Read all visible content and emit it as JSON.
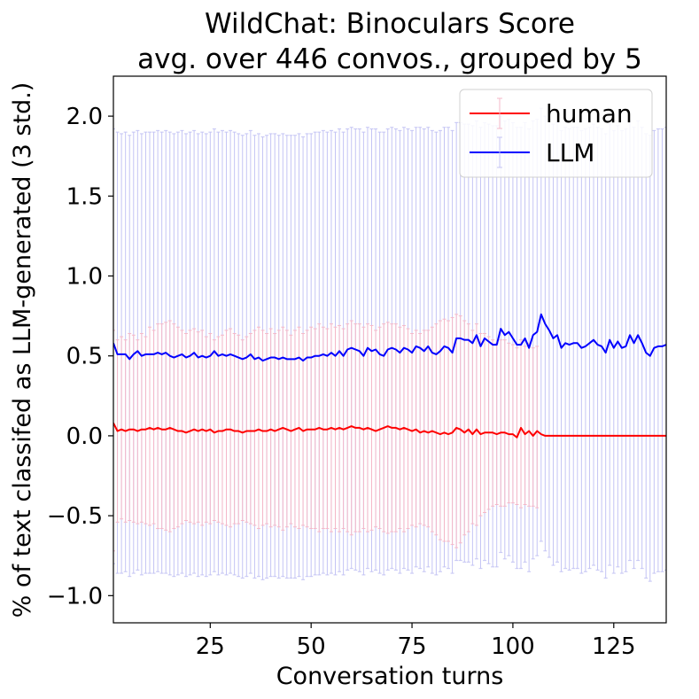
{
  "chart_data": {
    "type": "line",
    "title": [
      "WildChat: Binoculars Score",
      "avg. over 446 convos., grouped by 5"
    ],
    "xlabel": "Conversation turns",
    "ylabel": "% of text classifed as LLM-generated (3 std.)",
    "xlim": [
      1,
      138
    ],
    "ylim": [
      -1.17,
      2.25
    ],
    "xticks": [
      25,
      50,
      75,
      100,
      125
    ],
    "yticks": [
      -1.0,
      -0.5,
      0.0,
      0.5,
      1.0,
      1.5,
      2.0
    ],
    "ytick_labels": [
      "−1.0",
      "−0.5",
      "0.0",
      "0.5",
      "1.0",
      "1.5",
      "2.0"
    ],
    "grid": false,
    "legend_position": "top-right",
    "series": [
      {
        "name": "human",
        "color": "#ff0000",
        "errorbar_color": "#f5b8c8",
        "x_start": 1,
        "values": [
          0.08,
          0.03,
          0.04,
          0.03,
          0.04,
          0.04,
          0.03,
          0.04,
          0.04,
          0.05,
          0.04,
          0.05,
          0.04,
          0.04,
          0.05,
          0.04,
          0.03,
          0.03,
          0.02,
          0.03,
          0.04,
          0.03,
          0.04,
          0.03,
          0.04,
          0.02,
          0.03,
          0.03,
          0.04,
          0.04,
          0.03,
          0.03,
          0.02,
          0.03,
          0.03,
          0.03,
          0.04,
          0.03,
          0.03,
          0.04,
          0.03,
          0.04,
          0.05,
          0.04,
          0.03,
          0.04,
          0.05,
          0.03,
          0.04,
          0.04,
          0.04,
          0.05,
          0.04,
          0.04,
          0.05,
          0.04,
          0.05,
          0.04,
          0.05,
          0.06,
          0.05,
          0.05,
          0.04,
          0.05,
          0.04,
          0.03,
          0.04,
          0.05,
          0.06,
          0.05,
          0.05,
          0.04,
          0.05,
          0.04,
          0.03,
          0.04,
          0.02,
          0.03,
          0.02,
          0.03,
          0.02,
          0.01,
          0.02,
          0.01,
          0.02,
          0.05,
          0.04,
          0.02,
          0.04,
          0.01,
          0.04,
          0.01,
          0.02,
          0.02,
          0.02,
          0.01,
          0.02,
          0.02,
          0.01,
          0.01,
          -0.01,
          0.05,
          0.01,
          0.03,
          0.0,
          0.03,
          0.01,
          0.0,
          0.0,
          0.0,
          0.0,
          0.0,
          0.0,
          0.0,
          0.0,
          0.0,
          0.0,
          0.0,
          0.0,
          0.0,
          0.0,
          0.0,
          0.0,
          0.0,
          0.0,
          0.0,
          0.0,
          0.0,
          0.0,
          0.0,
          0.0,
          0.0,
          0.0,
          0.0,
          0.0,
          0.0,
          0.0,
          0.0
        ],
        "err_upper": [
          0.66,
          0.6,
          0.62,
          0.6,
          0.64,
          0.63,
          0.6,
          0.64,
          0.62,
          0.68,
          0.66,
          0.7,
          0.7,
          0.71,
          0.72,
          0.7,
          0.68,
          0.66,
          0.64,
          0.66,
          0.67,
          0.65,
          0.66,
          0.62,
          0.64,
          0.6,
          0.62,
          0.63,
          0.66,
          0.67,
          0.64,
          0.63,
          0.6,
          0.62,
          0.64,
          0.66,
          0.68,
          0.66,
          0.64,
          0.67,
          0.64,
          0.66,
          0.68,
          0.66,
          0.63,
          0.66,
          0.68,
          0.64,
          0.66,
          0.68,
          0.67,
          0.7,
          0.68,
          0.67,
          0.7,
          0.68,
          0.69,
          0.67,
          0.7,
          0.72,
          0.7,
          0.7,
          0.68,
          0.7,
          0.69,
          0.66,
          0.68,
          0.7,
          0.71,
          0.7,
          0.7,
          0.68,
          0.69,
          0.67,
          0.64,
          0.66,
          0.64,
          0.66,
          0.66,
          0.68,
          0.7,
          0.72,
          0.73,
          0.72,
          0.74,
          0.76,
          0.75,
          0.72,
          0.7,
          0.66,
          0.7,
          0.64,
          0.64,
          0.62,
          0.6,
          0.58,
          0.6,
          0.6,
          0.58,
          0.57,
          0.55,
          0.6,
          0.56,
          0.58,
          0.55,
          0.56,
          0.0,
          0.0,
          0.0,
          0.0,
          0.0,
          0.0,
          0.0,
          0.0,
          0.0,
          0.0,
          0.0,
          0.0,
          0.0,
          0.0,
          0.0,
          0.0,
          0.0,
          0.0,
          0.0,
          0.0,
          0.0,
          0.0,
          0.0,
          0.0,
          0.0,
          0.0,
          0.0,
          0.0,
          0.0,
          0.0,
          0.0,
          0.0
        ],
        "err_lower": [
          -0.72,
          -0.54,
          -0.52,
          -0.54,
          -0.53,
          -0.54,
          -0.55,
          -0.54,
          -0.55,
          -0.56,
          -0.55,
          -0.58,
          -0.58,
          -0.59,
          -0.6,
          -0.58,
          -0.57,
          -0.55,
          -0.53,
          -0.54,
          -0.55,
          -0.54,
          -0.56,
          -0.54,
          -0.55,
          -0.53,
          -0.54,
          -0.55,
          -0.56,
          -0.57,
          -0.55,
          -0.55,
          -0.53,
          -0.54,
          -0.55,
          -0.56,
          -0.58,
          -0.56,
          -0.55,
          -0.57,
          -0.56,
          -0.57,
          -0.59,
          -0.57,
          -0.55,
          -0.57,
          -0.58,
          -0.56,
          -0.57,
          -0.58,
          -0.58,
          -0.6,
          -0.58,
          -0.58,
          -0.6,
          -0.58,
          -0.6,
          -0.58,
          -0.6,
          -0.62,
          -0.6,
          -0.6,
          -0.58,
          -0.6,
          -0.59,
          -0.57,
          -0.58,
          -0.6,
          -0.61,
          -0.6,
          -0.6,
          -0.58,
          -0.6,
          -0.58,
          -0.56,
          -0.57,
          -0.55,
          -0.56,
          -0.57,
          -0.6,
          -0.62,
          -0.65,
          -0.66,
          -0.66,
          -0.68,
          -0.7,
          -0.67,
          -0.62,
          -0.6,
          -0.55,
          -0.56,
          -0.5,
          -0.48,
          -0.46,
          -0.44,
          -0.43,
          -0.44,
          -0.44,
          -0.42,
          -0.42,
          -0.43,
          -0.45,
          -0.43,
          -0.44,
          -0.44,
          -0.45,
          0.0,
          0.0,
          0.0,
          0.0,
          0.0,
          0.0,
          0.0,
          0.0,
          0.0,
          0.0,
          0.0,
          0.0,
          0.0,
          0.0,
          0.0,
          0.0,
          0.0,
          0.0,
          0.0,
          0.0,
          0.0,
          0.0,
          0.0,
          0.0,
          0.0,
          0.0,
          0.0,
          0.0,
          0.0,
          0.0,
          0.0,
          0.0
        ]
      },
      {
        "name": "LLM",
        "color": "#0000ff",
        "errorbar_color": "#c4c4f4",
        "x_start": 1,
        "values": [
          0.58,
          0.51,
          0.51,
          0.51,
          0.48,
          0.51,
          0.53,
          0.5,
          0.51,
          0.51,
          0.51,
          0.52,
          0.51,
          0.52,
          0.5,
          0.49,
          0.5,
          0.51,
          0.49,
          0.5,
          0.52,
          0.49,
          0.5,
          0.49,
          0.5,
          0.53,
          0.5,
          0.51,
          0.5,
          0.51,
          0.5,
          0.49,
          0.48,
          0.49,
          0.51,
          0.48,
          0.49,
          0.47,
          0.48,
          0.49,
          0.49,
          0.48,
          0.49,
          0.48,
          0.48,
          0.48,
          0.49,
          0.47,
          0.49,
          0.49,
          0.5,
          0.5,
          0.51,
          0.5,
          0.52,
          0.5,
          0.53,
          0.5,
          0.54,
          0.55,
          0.54,
          0.53,
          0.5,
          0.55,
          0.53,
          0.54,
          0.51,
          0.5,
          0.54,
          0.55,
          0.54,
          0.52,
          0.55,
          0.54,
          0.52,
          0.56,
          0.55,
          0.53,
          0.56,
          0.52,
          0.51,
          0.53,
          0.56,
          0.55,
          0.52,
          0.61,
          0.61,
          0.6,
          0.6,
          0.58,
          0.63,
          0.56,
          0.61,
          0.59,
          0.57,
          0.57,
          0.67,
          0.63,
          0.65,
          0.61,
          0.57,
          0.57,
          0.61,
          0.55,
          0.63,
          0.65,
          0.76,
          0.7,
          0.66,
          0.61,
          0.63,
          0.55,
          0.58,
          0.57,
          0.58,
          0.58,
          0.55,
          0.56,
          0.58,
          0.6,
          0.57,
          0.56,
          0.52,
          0.6,
          0.55,
          0.59,
          0.55,
          0.56,
          0.63,
          0.58,
          0.63,
          0.58,
          0.52,
          0.5,
          0.55,
          0.56,
          0.56,
          0.57
        ],
        "err_upper": [
          1.92,
          1.9,
          1.89,
          1.9,
          1.88,
          1.9,
          1.91,
          1.89,
          1.9,
          1.9,
          1.9,
          1.91,
          1.9,
          1.91,
          1.9,
          1.89,
          1.9,
          1.91,
          1.89,
          1.9,
          1.91,
          1.89,
          1.9,
          1.89,
          1.9,
          1.92,
          1.9,
          1.91,
          1.9,
          1.91,
          1.9,
          1.89,
          1.88,
          1.89,
          1.91,
          1.88,
          1.89,
          1.87,
          1.88,
          1.89,
          1.89,
          1.88,
          1.89,
          1.88,
          1.88,
          1.88,
          1.89,
          1.87,
          1.89,
          1.89,
          1.9,
          1.9,
          1.91,
          1.9,
          1.91,
          1.9,
          1.92,
          1.9,
          1.92,
          1.93,
          1.92,
          1.92,
          1.9,
          1.93,
          1.92,
          1.92,
          1.9,
          1.9,
          1.92,
          1.93,
          1.92,
          1.91,
          1.93,
          1.92,
          1.91,
          1.93,
          1.93,
          1.92,
          1.93,
          1.91,
          1.9,
          1.91,
          1.93,
          1.93,
          1.91,
          1.96,
          1.96,
          1.95,
          1.95,
          1.94,
          1.97,
          1.93,
          1.96,
          1.95,
          1.94,
          1.94,
          2.0,
          1.97,
          1.98,
          1.96,
          1.93,
          1.93,
          1.96,
          1.92,
          1.97,
          1.98,
          2.05,
          2.0,
          1.98,
          1.95,
          1.96,
          1.91,
          1.93,
          1.92,
          1.93,
          1.93,
          1.91,
          1.92,
          1.93,
          1.95,
          1.93,
          1.92,
          1.89,
          1.95,
          1.91,
          1.94,
          1.91,
          1.92,
          1.97,
          1.93,
          1.97,
          1.93,
          1.89,
          1.88,
          1.91,
          1.92,
          1.92,
          1.93
        ],
        "err_lower": [
          -0.8,
          -0.86,
          -0.86,
          -0.85,
          -0.88,
          -0.86,
          -0.84,
          -0.87,
          -0.86,
          -0.86,
          -0.86,
          -0.85,
          -0.86,
          -0.86,
          -0.87,
          -0.88,
          -0.87,
          -0.86,
          -0.88,
          -0.87,
          -0.86,
          -0.88,
          -0.87,
          -0.88,
          -0.87,
          -0.85,
          -0.87,
          -0.86,
          -0.87,
          -0.86,
          -0.87,
          -0.88,
          -0.89,
          -0.88,
          -0.86,
          -0.89,
          -0.88,
          -0.9,
          -0.89,
          -0.88,
          -0.88,
          -0.89,
          -0.88,
          -0.89,
          -0.89,
          -0.89,
          -0.88,
          -0.9,
          -0.88,
          -0.88,
          -0.87,
          -0.87,
          -0.86,
          -0.87,
          -0.86,
          -0.87,
          -0.85,
          -0.87,
          -0.84,
          -0.83,
          -0.84,
          -0.85,
          -0.87,
          -0.83,
          -0.85,
          -0.84,
          -0.86,
          -0.87,
          -0.84,
          -0.83,
          -0.84,
          -0.86,
          -0.83,
          -0.84,
          -0.86,
          -0.82,
          -0.83,
          -0.85,
          -0.82,
          -0.86,
          -0.87,
          -0.85,
          -0.82,
          -0.83,
          -0.86,
          -0.78,
          -0.78,
          -0.79,
          -0.79,
          -0.81,
          -0.77,
          -0.83,
          -0.78,
          -0.8,
          -0.82,
          -0.82,
          -0.73,
          -0.77,
          -0.75,
          -0.79,
          -0.83,
          -0.83,
          -0.79,
          -0.85,
          -0.77,
          -0.75,
          -0.66,
          -0.72,
          -0.76,
          -0.81,
          -0.79,
          -0.85,
          -0.83,
          -0.84,
          -0.83,
          -0.83,
          -0.86,
          -0.85,
          -0.83,
          -0.81,
          -0.84,
          -0.85,
          -0.89,
          -0.81,
          -0.86,
          -0.82,
          -0.86,
          -0.85,
          -0.78,
          -0.83,
          -0.78,
          -0.83,
          -0.89,
          -0.91,
          -0.86,
          -0.85,
          -0.85,
          -0.84
        ]
      }
    ]
  }
}
